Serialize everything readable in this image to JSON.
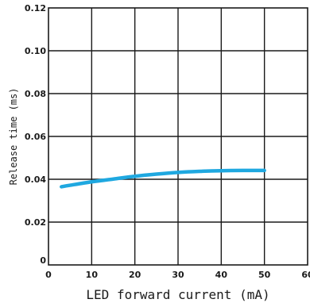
{
  "chart_data": {
    "type": "line",
    "title": "",
    "xlabel": "LED forward current (mA)",
    "ylabel": "Release time (ms)",
    "xlim": [
      0,
      60
    ],
    "ylim": [
      0,
      0.12
    ],
    "x_ticks": [
      "0",
      "10",
      "20",
      "30",
      "40",
      "50",
      "60"
    ],
    "y_ticks": [
      "0",
      "0.02",
      "0.04",
      "0.06",
      "0.08",
      "0.10",
      "0.12"
    ],
    "grid": true,
    "series": [
      {
        "color": "#1fa8e0",
        "x": [
          3,
          5,
          10,
          15,
          20,
          25,
          30,
          35,
          40,
          45,
          50
        ],
        "y": [
          0.0365,
          0.0372,
          0.0388,
          0.0401,
          0.0414,
          0.0424,
          0.0432,
          0.0437,
          0.044,
          0.0441,
          0.0441
        ]
      }
    ]
  }
}
